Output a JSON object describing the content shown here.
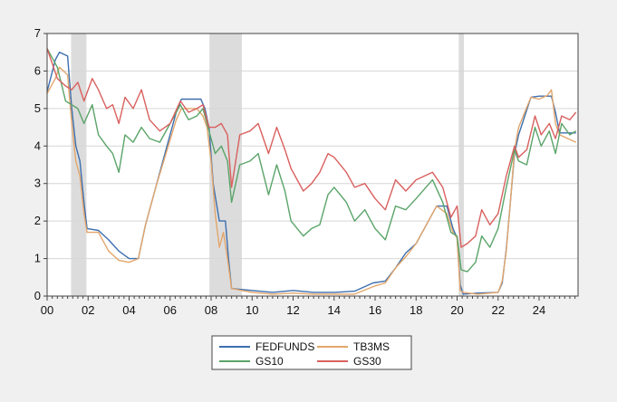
{
  "chart_data": {
    "type": "line",
    "x_ticks": [
      "00",
      "02",
      "04",
      "06",
      "08",
      "10",
      "12",
      "14",
      "16",
      "18",
      "20",
      "22",
      "24"
    ],
    "xlim": [
      2000,
      2025.9
    ],
    "y_ticks": [
      "0",
      "1",
      "2",
      "3",
      "4",
      "5",
      "6",
      "7"
    ],
    "ylim": [
      0,
      7
    ],
    "grid": "horizontal",
    "legend_position": "bottom",
    "recessions": [
      [
        2001.17,
        2001.92
      ],
      [
        2007.92,
        2009.5
      ],
      [
        2020.08,
        2020.33
      ]
    ],
    "series": [
      {
        "name": "FEDFUNDS",
        "color": "#3d6fae",
        "x": [
          2000.0,
          2000.4,
          2000.6,
          2001.0,
          2001.2,
          2001.4,
          2001.6,
          2001.8,
          2001.95,
          2002.5,
          2003.0,
          2003.5,
          2004.0,
          2004.45,
          2004.8,
          2005.3,
          2005.8,
          2006.3,
          2006.55,
          2007.5,
          2007.7,
          2007.9,
          2008.1,
          2008.4,
          2008.7,
          2008.85,
          2009.0,
          2010.0,
          2011.0,
          2012.0,
          2013.0,
          2014.0,
          2015.0,
          2015.9,
          2016.5,
          2017.0,
          2017.5,
          2018.0,
          2018.5,
          2019.0,
          2019.5,
          2019.8,
          2020.0,
          2020.15,
          2020.3,
          2021.0,
          2022.0,
          2022.2,
          2022.4,
          2022.6,
          2022.8,
          2023.0,
          2023.3,
          2023.6,
          2024.0,
          2024.6,
          2024.8,
          2025.0,
          2025.8
        ],
        "values": [
          5.45,
          6.3,
          6.5,
          6.4,
          5.0,
          4.0,
          3.6,
          2.5,
          1.8,
          1.75,
          1.5,
          1.2,
          1.0,
          1.0,
          1.9,
          2.9,
          3.9,
          4.9,
          5.25,
          5.25,
          5.0,
          4.5,
          3.0,
          2.0,
          2.0,
          1.0,
          0.2,
          0.15,
          0.1,
          0.15,
          0.1,
          0.1,
          0.13,
          0.35,
          0.4,
          0.75,
          1.15,
          1.4,
          1.9,
          2.4,
          2.4,
          1.8,
          1.55,
          0.3,
          0.05,
          0.08,
          0.1,
          0.35,
          1.25,
          2.5,
          3.8,
          4.3,
          4.8,
          5.3,
          5.33,
          5.33,
          4.9,
          4.35,
          4.35
        ]
      },
      {
        "name": "TB3MS",
        "color": "#e3a66c",
        "x": [
          2000.0,
          2000.4,
          2000.6,
          2001.0,
          2001.2,
          2001.4,
          2001.6,
          2001.8,
          2001.95,
          2002.5,
          2003.0,
          2003.5,
          2004.0,
          2004.45,
          2004.8,
          2005.3,
          2005.8,
          2006.3,
          2006.55,
          2007.3,
          2007.6,
          2007.8,
          2008.0,
          2008.2,
          2008.4,
          2008.6,
          2008.8,
          2009.0,
          2010.0,
          2011.0,
          2012.0,
          2013.0,
          2014.0,
          2015.0,
          2015.9,
          2016.5,
          2017.0,
          2017.5,
          2018.0,
          2018.5,
          2019.0,
          2019.5,
          2019.8,
          2020.0,
          2020.15,
          2020.3,
          2021.0,
          2022.0,
          2022.2,
          2022.4,
          2022.6,
          2022.8,
          2023.0,
          2023.3,
          2023.6,
          2024.0,
          2024.4,
          2024.6,
          2024.8,
          2025.0,
          2025.8
        ],
        "values": [
          5.4,
          5.8,
          6.1,
          5.9,
          4.6,
          3.6,
          3.2,
          2.2,
          1.7,
          1.7,
          1.2,
          0.95,
          0.9,
          1.0,
          1.9,
          2.9,
          3.8,
          4.7,
          5.0,
          5.0,
          4.8,
          4.5,
          3.6,
          2.2,
          1.3,
          1.7,
          1.0,
          0.2,
          0.1,
          0.05,
          0.08,
          0.05,
          0.05,
          0.05,
          0.25,
          0.35,
          0.75,
          1.05,
          1.4,
          1.9,
          2.4,
          2.2,
          1.7,
          1.55,
          0.15,
          0.1,
          0.05,
          0.1,
          0.4,
          1.2,
          2.5,
          3.9,
          4.5,
          4.9,
          5.3,
          5.25,
          5.35,
          5.5,
          4.6,
          4.3,
          4.1
        ]
      },
      {
        "name": "GS10",
        "color": "#5aa469",
        "x": [
          2000.0,
          2000.5,
          2000.9,
          2001.2,
          2001.5,
          2001.8,
          2002.2,
          2002.5,
          2002.9,
          2003.2,
          2003.5,
          2003.8,
          2004.2,
          2004.6,
          2005.0,
          2005.5,
          2006.0,
          2006.5,
          2006.9,
          2007.3,
          2007.6,
          2007.9,
          2008.2,
          2008.5,
          2008.8,
          2009.0,
          2009.4,
          2009.9,
          2010.3,
          2010.8,
          2011.2,
          2011.6,
          2011.9,
          2012.5,
          2012.9,
          2013.3,
          2013.7,
          2014.0,
          2014.6,
          2015.0,
          2015.5,
          2016.0,
          2016.5,
          2017.0,
          2017.5,
          2018.0,
          2018.8,
          2019.3,
          2019.7,
          2020.0,
          2020.2,
          2020.5,
          2020.9,
          2021.2,
          2021.6,
          2022.0,
          2022.4,
          2022.8,
          2023.0,
          2023.4,
          2023.8,
          2024.1,
          2024.5,
          2024.8,
          2025.1,
          2025.5,
          2025.8
        ],
        "values": [
          6.6,
          6.1,
          5.2,
          5.1,
          5.0,
          4.6,
          5.1,
          4.3,
          4.0,
          3.8,
          3.3,
          4.3,
          4.1,
          4.5,
          4.2,
          4.1,
          4.6,
          5.1,
          4.7,
          4.8,
          5.0,
          4.4,
          3.8,
          4.0,
          3.6,
          2.5,
          3.5,
          3.6,
          3.8,
          2.7,
          3.5,
          2.8,
          2.0,
          1.6,
          1.8,
          1.9,
          2.7,
          2.9,
          2.5,
          2.0,
          2.3,
          1.8,
          1.5,
          2.4,
          2.3,
          2.6,
          3.1,
          2.5,
          1.7,
          1.6,
          0.7,
          0.65,
          0.9,
          1.6,
          1.3,
          1.8,
          2.9,
          3.9,
          3.6,
          3.5,
          4.5,
          4.0,
          4.4,
          3.8,
          4.6,
          4.3,
          4.4
        ]
      },
      {
        "name": "GS30",
        "color": "#d9605e",
        "x": [
          2000.0,
          2000.5,
          2000.9,
          2001.2,
          2001.5,
          2001.8,
          2002.2,
          2002.5,
          2002.9,
          2003.2,
          2003.5,
          2003.8,
          2004.2,
          2004.6,
          2005.0,
          2005.5,
          2006.0,
          2006.5,
          2006.9,
          2007.3,
          2007.6,
          2007.9,
          2008.2,
          2008.5,
          2008.8,
          2009.0,
          2009.4,
          2009.9,
          2010.3,
          2010.8,
          2011.2,
          2011.6,
          2011.9,
          2012.5,
          2012.9,
          2013.3,
          2013.7,
          2014.0,
          2014.6,
          2015.0,
          2015.5,
          2016.0,
          2016.5,
          2017.0,
          2017.5,
          2018.0,
          2018.8,
          2019.3,
          2019.7,
          2020.0,
          2020.2,
          2020.5,
          2020.9,
          2021.2,
          2021.6,
          2022.0,
          2022.4,
          2022.8,
          2023.0,
          2023.4,
          2023.8,
          2024.1,
          2024.5,
          2024.8,
          2025.1,
          2025.5,
          2025.8
        ],
        "values": [
          6.6,
          5.8,
          5.6,
          5.5,
          5.7,
          5.2,
          5.8,
          5.5,
          5.0,
          5.1,
          4.6,
          5.3,
          5.0,
          5.5,
          4.7,
          4.4,
          4.6,
          5.2,
          4.9,
          5.0,
          5.1,
          4.5,
          4.5,
          4.6,
          4.3,
          2.9,
          4.3,
          4.4,
          4.6,
          3.8,
          4.5,
          3.9,
          3.4,
          2.8,
          3.0,
          3.3,
          3.8,
          3.7,
          3.3,
          2.9,
          3.0,
          2.6,
          2.3,
          3.1,
          2.8,
          3.1,
          3.3,
          2.9,
          2.1,
          2.4,
          1.3,
          1.4,
          1.6,
          2.3,
          1.9,
          2.2,
          3.2,
          4.0,
          3.7,
          3.9,
          4.8,
          4.3,
          4.6,
          4.2,
          4.8,
          4.7,
          4.9
        ]
      }
    ]
  }
}
